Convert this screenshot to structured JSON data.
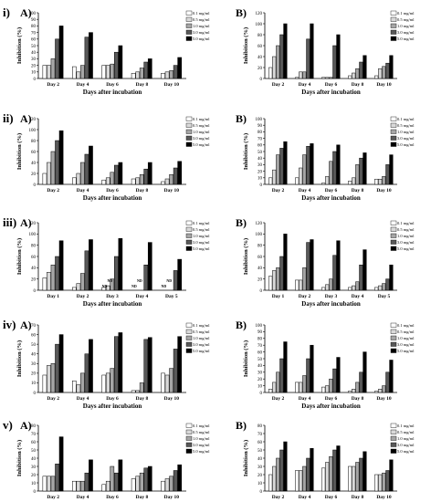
{
  "legend_labels": [
    "0.1 mg/ml",
    "0.5 mg/ml",
    "1.0 mg/ml",
    "3.0 mg/ml",
    "5.0 mg/ml"
  ],
  "series_colors": [
    "#ffffff",
    "#d9d9d9",
    "#a6a6a6",
    "#595959",
    "#000000"
  ],
  "chart_data": [
    {
      "type": "bar",
      "row_label": "i)",
      "panel_label": "A)",
      "ylabel": "Inhibition (%)",
      "xlabel": "Days after incubation",
      "ylim": [
        0,
        100
      ],
      "yticks": [
        0,
        10,
        20,
        30,
        40,
        50,
        60,
        70,
        80,
        90,
        100
      ],
      "categories": [
        "Day 2",
        "Day 4",
        "Day 6",
        "Day 8",
        "Day 10"
      ],
      "series": [
        {
          "values": [
            20,
            18,
            20,
            8,
            8
          ]
        },
        {
          "values": [
            20,
            10,
            20,
            10,
            10
          ]
        },
        {
          "values": [
            30,
            20,
            22,
            16,
            12
          ]
        },
        {
          "values": [
            60,
            63,
            40,
            25,
            20
          ]
        },
        {
          "values": [
            80,
            70,
            50,
            30,
            32
          ]
        }
      ]
    },
    {
      "type": "bar",
      "row_label": "",
      "panel_label": "B)",
      "ylabel": "Inhibition (%)",
      "xlabel": "Days after incubation",
      "ylim": [
        0,
        120
      ],
      "yticks": [
        0,
        20,
        40,
        60,
        80,
        100,
        120
      ],
      "categories": [
        "Day 2",
        "Day 4",
        "Day 6",
        "Day 8",
        "Day 10"
      ],
      "series": [
        {
          "values": [
            20,
            2,
            2,
            5,
            5
          ]
        },
        {
          "values": [
            40,
            12,
            2,
            10,
            18
          ]
        },
        {
          "values": [
            60,
            12,
            2,
            18,
            22
          ]
        },
        {
          "values": [
            80,
            72,
            60,
            30,
            28
          ]
        },
        {
          "values": [
            100,
            100,
            80,
            42,
            42
          ]
        }
      ]
    },
    {
      "type": "bar",
      "row_label": "ii)",
      "panel_label": "A)",
      "ylabel": "Inhibition (%)",
      "xlabel": "Days after incubation",
      "ylim": [
        0,
        120
      ],
      "yticks": [
        0,
        20,
        40,
        60,
        80,
        100,
        120
      ],
      "categories": [
        "Day 2",
        "Day 4",
        "Day 6",
        "Day 8",
        "Day 10"
      ],
      "series": [
        {
          "values": [
            20,
            12,
            8,
            10,
            5
          ]
        },
        {
          "values": [
            40,
            20,
            12,
            12,
            10
          ]
        },
        {
          "values": [
            60,
            40,
            22,
            18,
            18
          ]
        },
        {
          "values": [
            80,
            55,
            35,
            28,
            30
          ]
        },
        {
          "values": [
            98,
            70,
            40,
            40,
            42
          ]
        }
      ]
    },
    {
      "type": "bar",
      "row_label": "",
      "panel_label": "B)",
      "ylabel": "Inhibition (%)",
      "xlabel": "Days after incubation",
      "ylim": [
        0,
        100
      ],
      "yticks": [
        0,
        10,
        20,
        30,
        40,
        50,
        60,
        70,
        80,
        90,
        100
      ],
      "categories": [
        "Day 2",
        "Day 4",
        "Day 6",
        "Day 8",
        "Day 10"
      ],
      "series": [
        {
          "values": [
            10,
            10,
            2,
            5,
            8
          ]
        },
        {
          "values": [
            22,
            25,
            12,
            10,
            8
          ]
        },
        {
          "values": [
            45,
            45,
            35,
            30,
            12
          ]
        },
        {
          "values": [
            55,
            58,
            50,
            40,
            30
          ]
        },
        {
          "values": [
            65,
            62,
            60,
            48,
            45
          ]
        }
      ]
    },
    {
      "type": "bar",
      "row_label": "iii)",
      "panel_label": "A)",
      "ylabel": "Inhibition (%)",
      "xlabel": "Days after incubation",
      "ylim": [
        0,
        120
      ],
      "yticks": [
        0,
        20,
        40,
        60,
        80,
        100,
        120
      ],
      "categories": [
        "Day 1",
        "Day 2",
        "Day 3",
        "Day 4",
        "Day 5"
      ],
      "series": [
        {
          "values": [
            22,
            5,
            5,
            0,
            0
          ]
        },
        {
          "values": [
            32,
            12,
            8,
            0,
            0
          ]
        },
        {
          "values": [
            45,
            30,
            20,
            0,
            0
          ]
        },
        {
          "values": [
            60,
            70,
            60,
            45,
            35
          ]
        },
        {
          "values": [
            88,
            90,
            92,
            85,
            55
          ]
        }
      ],
      "annotations": [
        "ND",
        "ND",
        "ND",
        "ND",
        "ND",
        "ND"
      ]
    },
    {
      "type": "bar",
      "row_label": "",
      "panel_label": "B)",
      "ylabel": "Inhibition (%)",
      "xlabel": "Days after incubation",
      "ylim": [
        0,
        120
      ],
      "yticks": [
        0,
        20,
        40,
        60,
        80,
        100,
        120
      ],
      "categories": [
        "Day 1",
        "Day 2",
        "Day 3",
        "Day 4",
        "Day 5"
      ],
      "series": [
        {
          "values": [
            25,
            18,
            5,
            5,
            5
          ]
        },
        {
          "values": [
            35,
            18,
            10,
            8,
            8
          ]
        },
        {
          "values": [
            40,
            40,
            20,
            15,
            12
          ]
        },
        {
          "values": [
            60,
            85,
            62,
            45,
            20
          ]
        },
        {
          "values": [
            100,
            90,
            88,
            72,
            45
          ]
        }
      ]
    },
    {
      "type": "bar",
      "row_label": "iv)",
      "panel_label": "A)",
      "ylabel": "Inhibition (%)",
      "xlabel": "Days after incubation",
      "ylim": [
        0,
        70
      ],
      "yticks": [
        0,
        10,
        20,
        30,
        40,
        50,
        60,
        70
      ],
      "categories": [
        "Day 2",
        "Day 4",
        "Day 6",
        "Day 8",
        "Day 10"
      ],
      "series": [
        {
          "values": [
            18,
            12,
            18,
            2,
            20
          ]
        },
        {
          "values": [
            28,
            8,
            20,
            2,
            18
          ]
        },
        {
          "values": [
            30,
            20,
            25,
            10,
            25
          ]
        },
        {
          "values": [
            50,
            40,
            58,
            55,
            45
          ]
        },
        {
          "values": [
            60,
            55,
            62,
            57,
            58
          ]
        }
      ]
    },
    {
      "type": "bar",
      "row_label": "",
      "panel_label": "B)",
      "ylabel": "Inhibition (%)",
      "xlabel": "Days after incubation",
      "ylim": [
        0,
        100
      ],
      "yticks": [
        0,
        10,
        20,
        30,
        40,
        50,
        60,
        70,
        80,
        90,
        100
      ],
      "categories": [
        "Day 2",
        "Day 4",
        "Day 6",
        "Day 8",
        "Day 10"
      ],
      "series": [
        {
          "values": [
            5,
            15,
            8,
            2,
            2
          ]
        },
        {
          "values": [
            15,
            15,
            10,
            5,
            5
          ]
        },
        {
          "values": [
            30,
            25,
            20,
            15,
            10
          ]
        },
        {
          "values": [
            50,
            50,
            35,
            30,
            30
          ]
        },
        {
          "values": [
            75,
            70,
            52,
            60,
            48
          ]
        }
      ]
    },
    {
      "type": "bar",
      "row_label": "v)",
      "panel_label": "A)",
      "ylabel": "Inhibition (%)",
      "xlabel": "Days after incubation",
      "ylim": [
        0,
        80
      ],
      "yticks": [
        0,
        10,
        20,
        30,
        40,
        50,
        60,
        70,
        80
      ],
      "categories": [
        "Day 2",
        "Day 4",
        "Day 6",
        "Day 8",
        "Day 10"
      ],
      "series": [
        {
          "values": [
            18,
            12,
            8,
            15,
            12
          ]
        },
        {
          "values": [
            18,
            12,
            12,
            18,
            15
          ]
        },
        {
          "values": [
            18,
            12,
            30,
            22,
            18
          ]
        },
        {
          "values": [
            33,
            22,
            22,
            28,
            25
          ]
        },
        {
          "values": [
            66,
            38,
            38,
            30,
            32
          ]
        }
      ]
    },
    {
      "type": "bar",
      "row_label": "",
      "panel_label": "B)",
      "ylabel": "Inhibition (%)",
      "xlabel": "Days after incubation",
      "ylim": [
        0,
        80
      ],
      "yticks": [
        0,
        10,
        20,
        30,
        40,
        50,
        60,
        70,
        80
      ],
      "categories": [
        "Day 2",
        "Day 4",
        "Day 6",
        "Day 8",
        "Day 10"
      ],
      "series": [
        {
          "values": [
            20,
            25,
            28,
            30,
            20
          ]
        },
        {
          "values": [
            30,
            25,
            35,
            30,
            20
          ]
        },
        {
          "values": [
            40,
            30,
            42,
            35,
            22
          ]
        },
        {
          "values": [
            50,
            40,
            50,
            40,
            25
          ]
        },
        {
          "values": [
            60,
            52,
            55,
            48,
            38
          ]
        }
      ]
    }
  ]
}
